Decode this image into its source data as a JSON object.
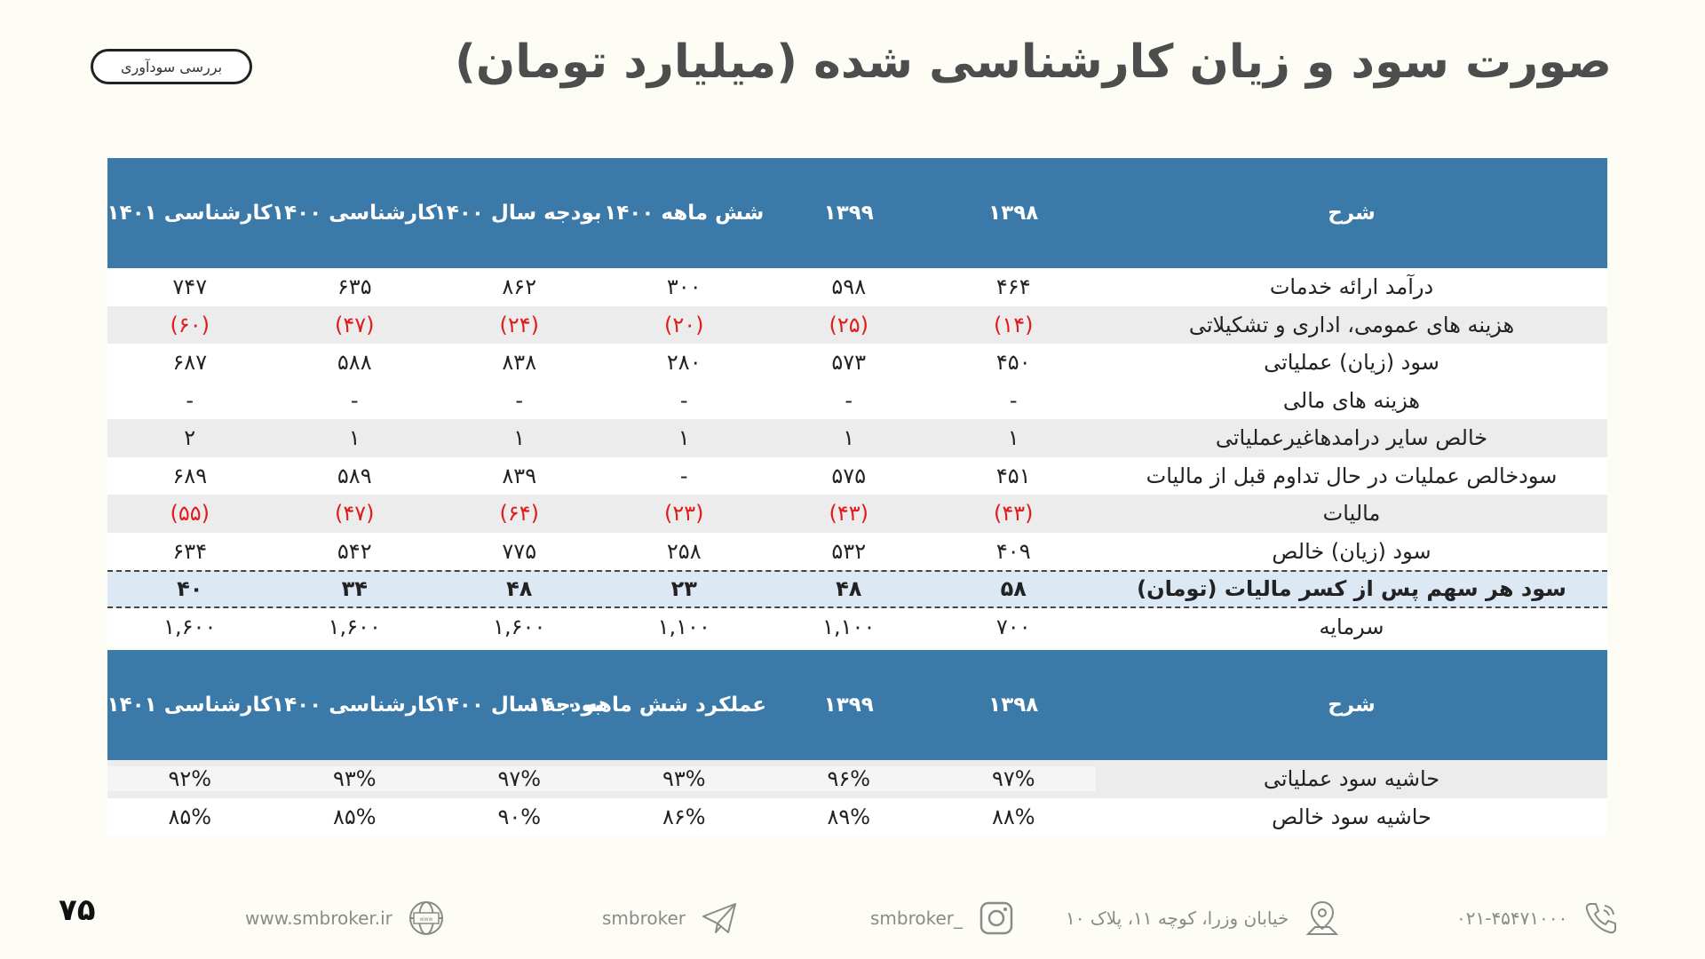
{
  "header": {
    "title": "صورت سود و زیان کارشناسی شده (میلیارد تومان)",
    "badge": "بررسی سودآوری"
  },
  "table": {
    "columns": [
      "شرح",
      "۱۳۹۸",
      "۱۳۹۹",
      "شش ماهه ۱۴۰۰",
      "بودجه سال ۱۴۰۰",
      "کارشناسی ۱۴۰۰",
      "کارشناسی ۱۴۰۱"
    ],
    "rows": [
      {
        "label": "درآمد ارائه خدمات",
        "values": [
          "۴۶۴",
          "۵۹۸",
          "۳۰۰",
          "۸۶۲",
          "۶۳۵",
          "۷۴۷"
        ]
      },
      {
        "label": "هزینه های عمومی، اداری و تشکیلاتی",
        "values": [
          "(۱۴)",
          "(۲۵)",
          "(۲۰)",
          "(۲۴)",
          "(۴۷)",
          "(۶۰)"
        ]
      },
      {
        "label": "سود (زیان) عملیاتی",
        "values": [
          "۴۵۰",
          "۵۷۳",
          "۲۸۰",
          "۸۳۸",
          "۵۸۸",
          "۶۸۷"
        ]
      },
      {
        "label": "هزینه های مالی",
        "values": [
          "-",
          "-",
          "-",
          "-",
          "-",
          "-"
        ]
      },
      {
        "label": "خالص سایر درامدهاغیرعملیاتی",
        "values": [
          "۱",
          "۱",
          "۱",
          "۱",
          "۱",
          "۲"
        ]
      },
      {
        "label": "سودخالص عملیات در حال تداوم قبل از مالیات",
        "values": [
          "۴۵۱",
          "۵۷۵",
          "-",
          "۸۳۹",
          "۵۸۹",
          "۶۸۹"
        ]
      },
      {
        "label": "مالیات",
        "values": [
          "(۴۳)",
          "(۴۳)",
          "(۲۳)",
          "(۶۴)",
          "(۴۷)",
          "(۵۵)"
        ]
      },
      {
        "label": "سود (زیان) خالص",
        "values": [
          "۴۰۹",
          "۵۳۲",
          "۲۵۸",
          "۷۷۵",
          "۵۴۲",
          "۶۳۴"
        ]
      },
      {
        "label": "سود هر سهم پس از کسر مالیات (تومان)",
        "values": [
          "۵۸",
          "۴۸",
          "۲۳",
          "۴۸",
          "۳۴",
          "۴۰"
        ]
      },
      {
        "label": "سرمایه",
        "values": [
          "۷۰۰",
          "۱,۱۰۰",
          "۱,۱۰۰",
          "۱,۶۰۰",
          "۱,۶۰۰",
          "۱,۶۰۰"
        ]
      }
    ]
  },
  "margins_table": {
    "columns": [
      "شرح",
      "۱۳۹۸",
      "۱۳۹۹",
      "عملکرد شش ماهه ۱۴۰۰",
      "بودجه سال ۱۴۰۰",
      "کارشناسی ۱۴۰۰",
      "کارشناسی ۱۴۰۱"
    ],
    "rows": [
      {
        "label": "حاشیه سود عملیاتی",
        "values": [
          "۹۷%",
          "۹۶%",
          "۹۳%",
          "۹۷%",
          "۹۳%",
          "۹۲%"
        ]
      },
      {
        "label": "حاشیه سود خالص",
        "values": [
          "۸۸%",
          "۸۹%",
          "۸۶%",
          "۹۰%",
          "۸۵%",
          "۸۵%"
        ]
      }
    ]
  },
  "footer": {
    "page_number": "۷۵",
    "website": "www.smbroker.ir",
    "telegram": "smbroker",
    "instagram": "smbroker_",
    "address": "خیابان وزرا، کوچه ۱۱، پلاک ۱۰",
    "phone": "۰۲۱-۴۵۴۷۱۰۰۰"
  },
  "colors": {
    "header_bg": "#3a79a8",
    "negative": "#e01b1b",
    "eps_bg": "#dce8f3"
  }
}
